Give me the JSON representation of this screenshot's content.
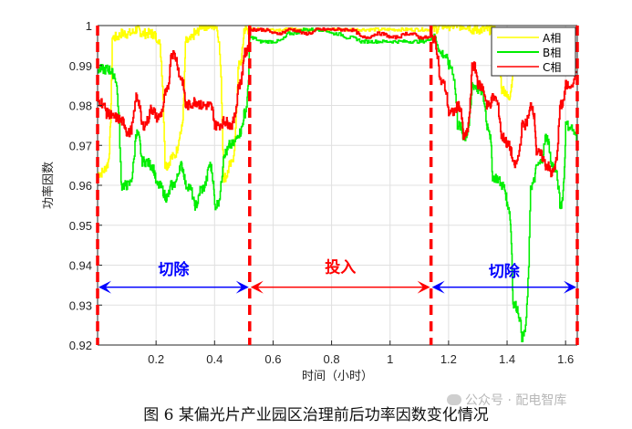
{
  "caption": "图 6  某偏光片产业园区治理前后功率因数变化情况",
  "watermark": "公众号 · 配电智库",
  "colors": {
    "phase_a": "#ffff00",
    "phase_b": "#00ee00",
    "phase_c": "#ff0000",
    "divider": "#ff0000",
    "cut_arrow": "#0000ff",
    "in_arrow": "#ff0000",
    "cut_label": "#0000ff",
    "in_label": "#ff0000",
    "grid": "#e0e0e0",
    "axis": "#262626"
  },
  "chart_data": {
    "type": "line",
    "title": "",
    "xlabel": "时间（小时）",
    "ylabel": "功率因数",
    "xlim": [
      0,
      1.64
    ],
    "ylim": [
      0.92,
      1.0
    ],
    "xticks": [
      0.2,
      0.4,
      0.6,
      0.8,
      1,
      1.2,
      1.4,
      1.6
    ],
    "xtick_labels": [
      "0.2",
      "0.4",
      "0.6",
      "0.8",
      "1",
      "1.2",
      "1.4",
      "1.6"
    ],
    "yticks": [
      0.92,
      0.93,
      0.94,
      0.95,
      0.96,
      0.97,
      0.98,
      0.99,
      1
    ],
    "ytick_labels": [
      "0.92",
      "0.93",
      "0.94",
      "0.95",
      "0.96",
      "0.97",
      "0.98",
      "0.99",
      "1"
    ],
    "grid": true,
    "legend_position": "upper right",
    "legend": [
      "A相",
      "B相",
      "C相"
    ],
    "x": [
      0.0,
      0.03,
      0.05,
      0.08,
      0.1,
      0.13,
      0.15,
      0.18,
      0.2,
      0.23,
      0.25,
      0.28,
      0.3,
      0.33,
      0.35,
      0.38,
      0.4,
      0.43,
      0.45,
      0.48,
      0.5,
      0.52,
      0.55,
      0.6,
      0.65,
      0.7,
      0.75,
      0.8,
      0.85,
      0.9,
      0.95,
      1.0,
      1.05,
      1.1,
      1.14,
      1.17,
      1.2,
      1.23,
      1.25,
      1.28,
      1.3,
      1.33,
      1.35,
      1.38,
      1.4,
      1.42,
      1.45,
      1.48,
      1.5,
      1.53,
      1.55,
      1.58,
      1.6,
      1.64
    ],
    "series": [
      {
        "name": "A相",
        "values": [
          0.963,
          0.965,
          0.997,
          0.998,
          0.998,
          0.999,
          0.998,
          0.998,
          0.997,
          0.965,
          0.967,
          0.973,
          0.996,
          0.998,
          1.0,
          1.0,
          1.0,
          0.962,
          0.965,
          0.99,
          0.999,
          0.999,
          0.999,
          0.999,
          0.999,
          0.999,
          0.999,
          0.999,
          0.999,
          0.999,
          0.999,
          0.999,
          0.999,
          0.999,
          0.999,
          1.0,
          1.0,
          1.0,
          1.0,
          0.999,
          0.999,
          0.999,
          0.999,
          0.984,
          0.982,
          0.99,
          0.99,
          0.99,
          0.99,
          0.99,
          0.99,
          0.99,
          0.99,
          0.99
        ]
      },
      {
        "name": "B相",
        "values": [
          0.989,
          0.989,
          0.988,
          0.96,
          0.96,
          0.973,
          0.966,
          0.965,
          0.96,
          0.957,
          0.96,
          0.965,
          0.96,
          0.955,
          0.959,
          0.965,
          0.955,
          0.968,
          0.97,
          0.973,
          0.978,
          0.997,
          0.996,
          0.996,
          0.998,
          0.999,
          0.999,
          0.998,
          0.997,
          0.996,
          0.996,
          0.996,
          0.996,
          0.996,
          0.997,
          0.993,
          0.99,
          0.975,
          0.972,
          0.985,
          0.984,
          0.975,
          0.962,
          0.96,
          0.955,
          0.93,
          0.922,
          0.96,
          0.965,
          0.972,
          0.965,
          0.955,
          0.975,
          0.97
        ]
      },
      {
        "name": "C相",
        "values": [
          0.981,
          0.978,
          0.977,
          0.976,
          0.973,
          0.982,
          0.975,
          0.979,
          0.977,
          0.983,
          0.993,
          0.987,
          0.98,
          0.981,
          0.98,
          0.98,
          0.975,
          0.976,
          0.975,
          0.985,
          0.993,
          0.999,
          0.999,
          0.998,
          0.999,
          0.998,
          0.999,
          0.999,
          0.999,
          0.997,
          0.998,
          0.997,
          0.998,
          0.997,
          0.997,
          0.986,
          0.978,
          0.98,
          0.972,
          0.99,
          0.985,
          0.98,
          0.982,
          0.972,
          0.97,
          0.965,
          0.975,
          0.98,
          0.968,
          0.965,
          0.963,
          0.98,
          0.985,
          0.99
        ]
      }
    ],
    "annotations": {
      "dividers_x": [
        0.0,
        0.52,
        1.14,
        1.64
      ],
      "regions": [
        {
          "label": "切除",
          "x_start": 0.0,
          "x_end": 0.52,
          "arrow_y": 0.9345,
          "label_y": 0.939
        },
        {
          "label": "投入",
          "x_start": 0.52,
          "x_end": 1.14,
          "arrow_y": 0.9345,
          "label_y": 0.9395
        },
        {
          "label": "切除",
          "x_start": 1.14,
          "x_end": 1.64,
          "arrow_y": 0.9345,
          "label_y": 0.9385
        }
      ]
    }
  }
}
